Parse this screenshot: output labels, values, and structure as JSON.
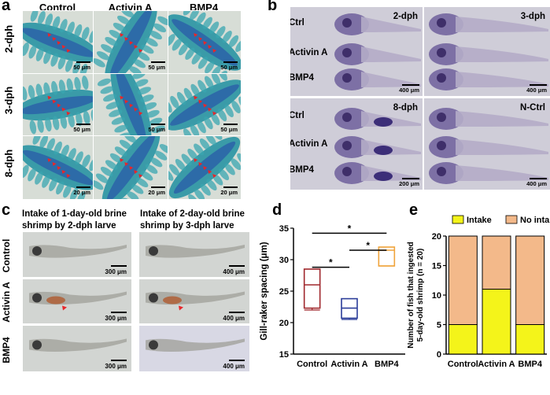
{
  "panel_a": {
    "label": "a",
    "columns": [
      "Control",
      "Activin A",
      "BMP4"
    ],
    "rows": [
      "2-dph",
      "3-dph",
      "8-dph"
    ],
    "scale_bars": [
      [
        "50 μm",
        "50 μm",
        "50 μm"
      ],
      [
        "50 μm",
        "50 μm",
        "50 μm"
      ],
      [
        "20 μm",
        "20 μm",
        "20 μm"
      ]
    ]
  },
  "panel_b": {
    "label": "b",
    "quadrants": [
      {
        "title": "2-dph",
        "rows": [
          "Ctrl",
          "Activin A",
          "BMP4"
        ],
        "scale": "400 μm"
      },
      {
        "title": "3-dph",
        "rows": [],
        "scale": "400 μm"
      },
      {
        "title": "8-dph",
        "rows": [
          "Ctrl",
          "Activin A",
          "BMP4"
        ],
        "scale": "200 μm"
      },
      {
        "title": "N-Ctrl",
        "rows": [],
        "scale": "400 μm"
      }
    ]
  },
  "panel_c": {
    "label": "c",
    "col1_line1": "Intake of 1-day-old brine",
    "col1_line2": "shrimp by 2-dph larve",
    "col2_line1": "Intake of 2-day-old brine",
    "col2_line2": "shrimp by 3-dph larve",
    "rows": [
      "Control",
      "Activin A",
      "BMP4"
    ],
    "scale_bars": [
      [
        "300 μm",
        "400 μm"
      ],
      [
        "300 μm",
        "400 μm"
      ],
      [
        "300 μm",
        "400 μm"
      ]
    ]
  },
  "panel_d": {
    "label": "d",
    "sig_marks": [
      "*",
      "*",
      "*"
    ],
    "colors": {
      "Control": "#a0282d",
      "Activin A": "#2c3e9a",
      "BMP4": "#f0a43c"
    }
  },
  "panel_e": {
    "label": "e",
    "legend": [
      "Intake",
      "No intake"
    ],
    "colors": {
      "intake": "#f4f41a",
      "no_intake": "#f3b98a"
    }
  },
  "chart_data": [
    {
      "type": "box",
      "categories": [
        "Control",
        "Activin A",
        "BMP4"
      ],
      "ylabel": "Gill-raker spacing (μm)",
      "ylim": [
        15,
        35
      ],
      "yticks": [
        15,
        20,
        25,
        30,
        35
      ],
      "boxes": [
        {
          "min": 22,
          "q1": 22.3,
          "median": 26,
          "q3": 28.5,
          "max": 28.5
        },
        {
          "min": 20.5,
          "q1": 20.7,
          "median": 22.3,
          "q3": 23.8,
          "max": 23.8
        },
        {
          "min": 29,
          "q1": 29,
          "median": 31.5,
          "q3": 32,
          "max": 32
        }
      ],
      "significance": [
        {
          "from": "Control",
          "to": "BMP4",
          "label": "*"
        },
        {
          "from": "Control",
          "to": "Activin A",
          "label": "*"
        },
        {
          "from": "Activin A",
          "to": "BMP4",
          "label": "*"
        }
      ],
      "grid": false
    },
    {
      "type": "bar",
      "stacked": true,
      "categories": [
        "Control",
        "Activin A",
        "BMP4"
      ],
      "ylabel_line1": "Number of fish that ingested",
      "ylabel_line2": "5-day-old shrimp (n = 20)",
      "ylim": [
        0,
        20
      ],
      "yticks": [
        0,
        5,
        10,
        15,
        20
      ],
      "series": [
        {
          "name": "Intake",
          "values": [
            5,
            11,
            5
          ]
        },
        {
          "name": "No intake",
          "values": [
            15,
            9,
            15
          ]
        }
      ],
      "legend_position": "top",
      "grid": false
    }
  ]
}
